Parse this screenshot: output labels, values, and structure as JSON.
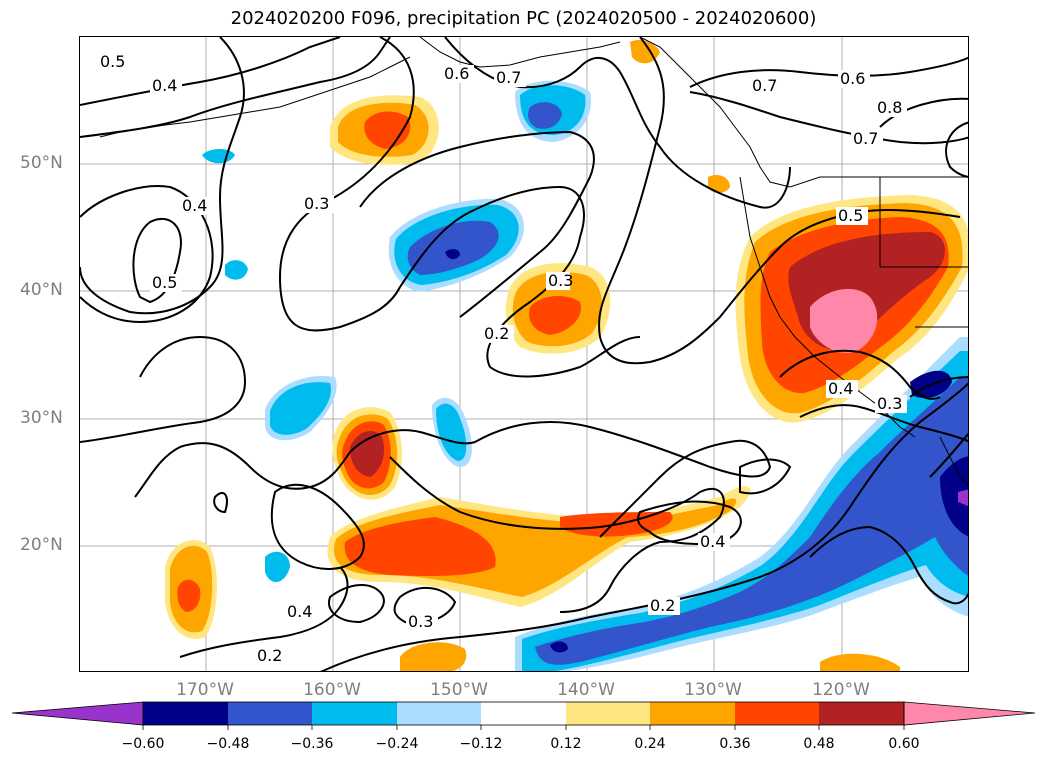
{
  "title": "2024020200 F096, precipitation PC (2024020500 - 2024020600)",
  "lat_labels": [
    "50°N",
    "40°N",
    "30°N",
    "20°N"
  ],
  "lon_labels": [
    "170°W",
    "160°W",
    "150°W",
    "140°W",
    "130°W",
    "120°W"
  ],
  "contour_labels": [
    "0.5",
    "0.4",
    "0.6",
    "0.7",
    "0.7",
    "0.6",
    "0.8",
    "0.7",
    "0.3",
    "0.4",
    "0.5",
    "0.3",
    "0.2",
    "0.5",
    "0.4",
    "0.3",
    "0.4",
    "0.2",
    "0.4",
    "0.3",
    "0.2"
  ],
  "colorbar": {
    "ticks": [
      "−0.60",
      "−0.48",
      "−0.36",
      "−0.24",
      "−0.12",
      "0.12",
      "0.24",
      "0.36",
      "0.48",
      "0.60"
    ],
    "colors": [
      "#9933cc",
      "#000088",
      "#3355cc",
      "#00bbee",
      "#aaddff",
      "#ffffff",
      "#ffe680",
      "#ffa500",
      "#ff4500",
      "#b22222",
      "#ff88aa"
    ]
  }
}
